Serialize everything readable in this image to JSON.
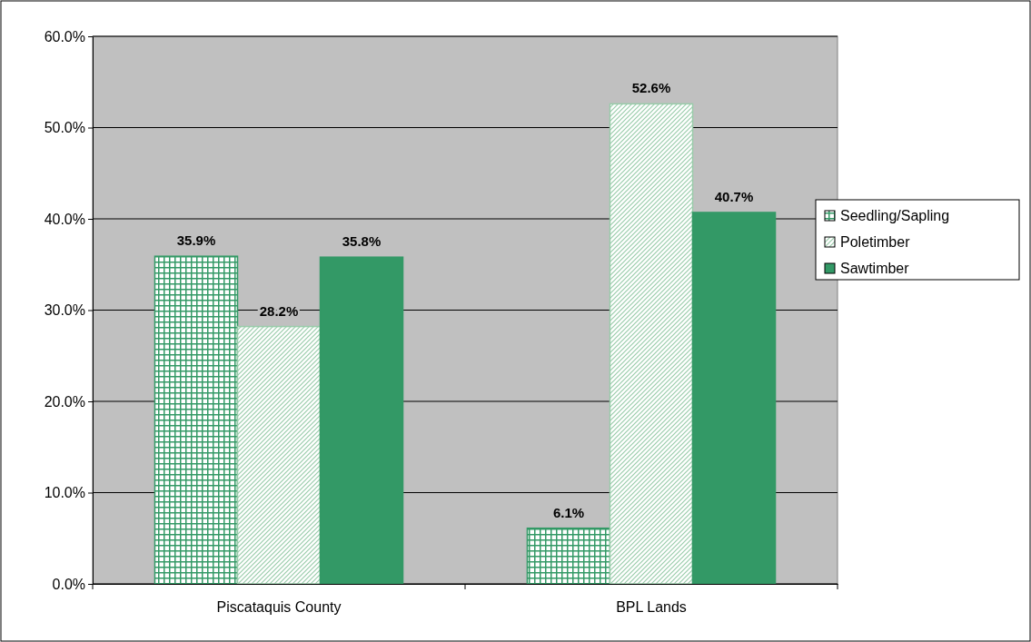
{
  "chart_data": {
    "type": "bar",
    "categories": [
      "Piscataquis County",
      "BPL Lands"
    ],
    "series": [
      {
        "name": "Seedling/Sapling",
        "color": "#339966",
        "values": [
          35.9,
          6.1
        ],
        "value_labels": [
          "35.9%",
          "6.1%"
        ]
      },
      {
        "name": "Poletimber",
        "color": "#99ccaa",
        "values": [
          28.2,
          52.6
        ],
        "value_labels": [
          "28.2%",
          "52.6%"
        ]
      },
      {
        "name": "Sawtimber",
        "color": "#339966",
        "values": [
          35.8,
          40.7
        ],
        "value_labels": [
          "35.8%",
          "40.7%"
        ]
      }
    ],
    "ylim": [
      0,
      60
    ],
    "yticks": [
      {
        "value": 0,
        "label": "0.0%"
      },
      {
        "value": 10,
        "label": "10.0%"
      },
      {
        "value": 20,
        "label": "20.0%"
      },
      {
        "value": 30,
        "label": "30.0%"
      },
      {
        "value": 40,
        "label": "40.0%"
      },
      {
        "value": 50,
        "label": "50.0%"
      },
      {
        "value": 60,
        "label": "60.0%"
      }
    ],
    "grid": "y",
    "legend": "right"
  }
}
